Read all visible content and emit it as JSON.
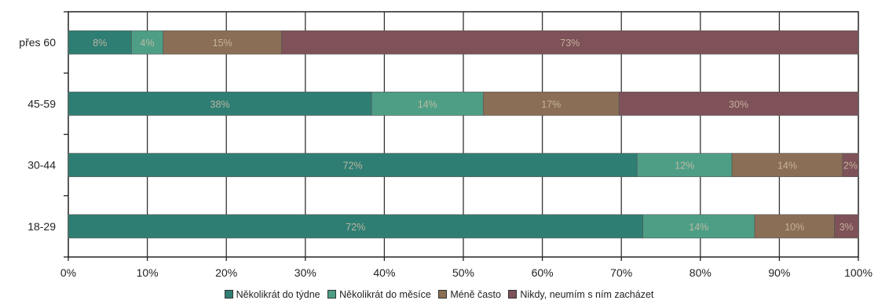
{
  "chart_data": {
    "type": "bar",
    "orientation": "horizontal",
    "stacked": "percent",
    "title": "",
    "xlabel": "",
    "ylabel": "",
    "xlim": [
      0,
      100
    ],
    "x_ticks": [
      "0%",
      "10%",
      "20%",
      "30%",
      "40%",
      "50%",
      "60%",
      "70%",
      "80%",
      "90%",
      "100%"
    ],
    "grid": true,
    "legend_position": "bottom",
    "categories": [
      "přes 60",
      "45-59",
      "30-44",
      "18-29"
    ],
    "series": [
      {
        "name": "Několikrát do týdne",
        "color": "#2f7e74",
        "values": [
          8,
          38,
          72,
          72
        ],
        "labels": [
          "8%",
          "38%",
          "72%",
          "72%"
        ]
      },
      {
        "name": "Několikrát do měsíce",
        "color": "#4e9e86",
        "values": [
          4,
          14,
          12,
          14
        ],
        "labels": [
          "4%",
          "14%",
          "12%",
          "14%"
        ]
      },
      {
        "name": "Méně často",
        "color": "#8a6e55",
        "values": [
          15,
          17,
          14,
          10
        ],
        "labels": [
          "15%",
          "17%",
          "14%",
          "10%"
        ]
      },
      {
        "name": "Nikdy, neumím s ním zacházet",
        "color": "#7e5258",
        "values": [
          73,
          30,
          2,
          3
        ],
        "labels": [
          "73%",
          "30%",
          "2%",
          "3%"
        ]
      }
    ]
  }
}
